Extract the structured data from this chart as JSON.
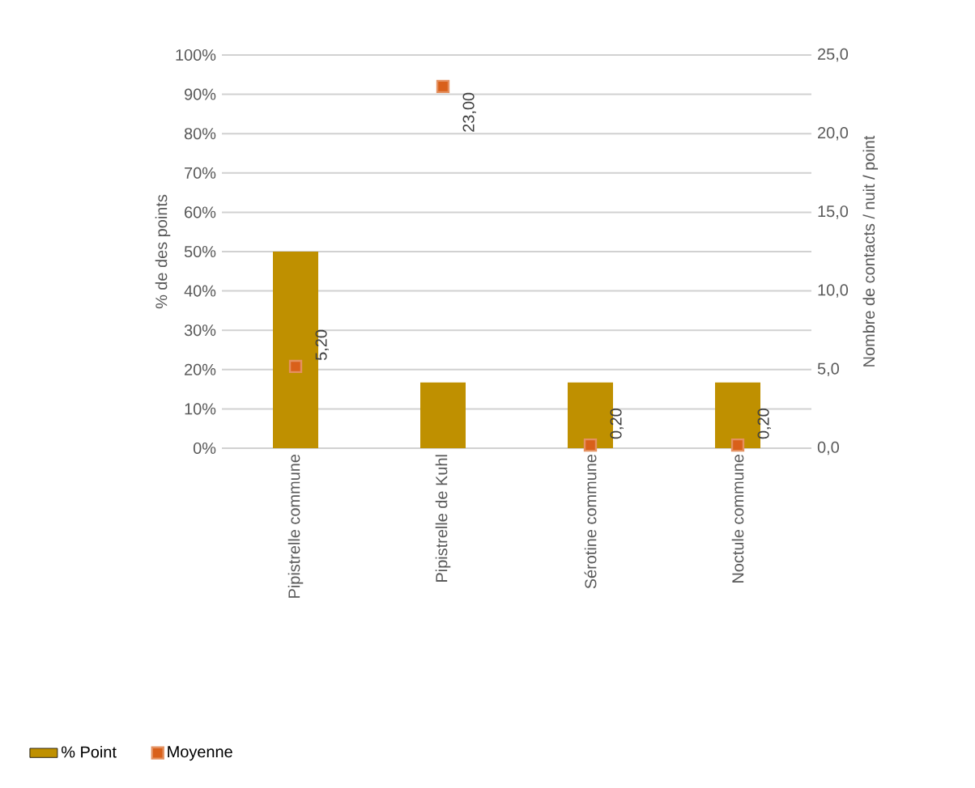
{
  "chart_data": {
    "type": "bar",
    "categories": [
      "Pipistrelle commune",
      "Pipistrelle de Kuhl",
      "Sérotine commune",
      "Noctule commune"
    ],
    "series": [
      {
        "name": "% Point",
        "color": "#bf9000",
        "values": [
          50,
          16.7,
          16.7,
          16.7
        ]
      },
      {
        "name": "Moyenne",
        "type": "scatter",
        "axis": "y2",
        "color": "#d9601a",
        "marker": "square",
        "values": [
          5.2,
          23.0,
          0.2,
          0.2
        ],
        "value_labels": [
          "5,20",
          "23,00",
          "0,20",
          "0,20"
        ]
      }
    ],
    "ylabel": "% de des points",
    "y2label": "Nombre de contacts / nuit / point",
    "ylim": [
      0,
      100
    ],
    "yticks": [
      {
        "value": 0,
        "label": "0%"
      },
      {
        "value": 10,
        "label": "10%"
      },
      {
        "value": 20,
        "label": "20%"
      },
      {
        "value": 30,
        "label": "30%"
      },
      {
        "value": 40,
        "label": "40%"
      },
      {
        "value": 50,
        "label": "50%"
      },
      {
        "value": 60,
        "label": "60%"
      },
      {
        "value": 70,
        "label": "70%"
      },
      {
        "value": 80,
        "label": "80%"
      },
      {
        "value": 90,
        "label": "90%"
      },
      {
        "value": 100,
        "label": "100%"
      }
    ],
    "y2lim": [
      0,
      25
    ],
    "y2ticks": [
      {
        "value": 0,
        "label": "0,0"
      },
      {
        "value": 5,
        "label": "5,0"
      },
      {
        "value": 10,
        "label": "10,0"
      },
      {
        "value": 15,
        "label": "15,0"
      },
      {
        "value": 20,
        "label": "20,0"
      },
      {
        "value": 25,
        "label": "25,0"
      }
    ],
    "grid": "y",
    "legend": "bottom"
  }
}
